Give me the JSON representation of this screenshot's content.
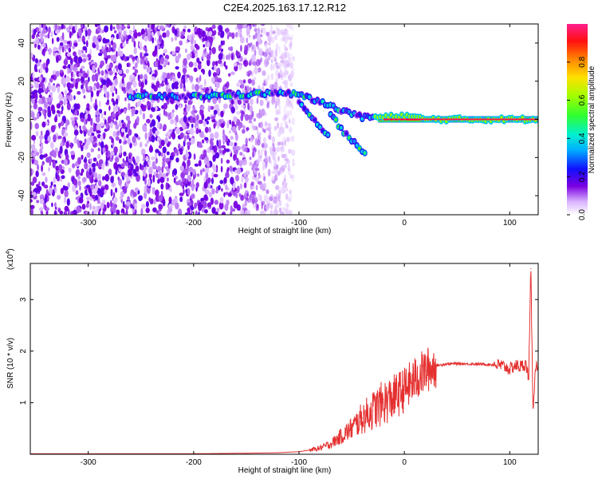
{
  "title": "C2E4.2025.163.17.12.R12",
  "colors": {
    "trace": "#e53030",
    "axis": "#000000"
  },
  "chart_data": [
    {
      "type": "heatmap",
      "xlabel": "Height of straight line (km)",
      "ylabel": "Frequency (Hz)",
      "xlim": [
        -355,
        127
      ],
      "ylim": [
        -50,
        50
      ],
      "xticks": [
        -300,
        -200,
        -100,
        0,
        100
      ],
      "yticks": [
        -40,
        -20,
        0,
        20,
        40
      ],
      "colorbar": {
        "label": "Normalized spectral amplitude",
        "range": [
          0,
          1
        ],
        "ticks": [
          "0.0",
          "0.2",
          "0.4",
          "0.6",
          "0.8"
        ],
        "tick_values": [
          0.0,
          0.2,
          0.4,
          0.6,
          0.8
        ],
        "colormap": "rainbow"
      },
      "ridges": [
        {
          "points": [
            [
              -260,
              12
            ],
            [
              -200,
              12
            ],
            [
              -150,
              13
            ],
            [
              -120,
              14
            ],
            [
              -100,
              13
            ],
            [
              -80,
              9
            ],
            [
              -60,
              5
            ],
            [
              -40,
              1
            ],
            [
              -20,
              1
            ],
            [
              0,
              2
            ],
            [
              20,
              0
            ],
            [
              127,
              0
            ]
          ]
        },
        {
          "points": [
            [
              -100,
              10
            ],
            [
              -90,
              3
            ],
            [
              -80,
              -4
            ],
            [
              -70,
              -10
            ]
          ]
        },
        {
          "points": [
            [
              -70,
              3
            ],
            [
              -60,
              -5
            ],
            [
              -45,
              -14
            ],
            [
              -35,
              -18
            ]
          ]
        }
      ],
      "noise_region_x": [
        -355,
        -125
      ],
      "carrier_band": {
        "x": [
          -25,
          127
        ],
        "y": 0
      }
    },
    {
      "type": "line",
      "xlabel": "Height of straight line (km)",
      "ylabel": "SNR (10 * v/v)",
      "y_multiplier": "(x10",
      "y_multiplier_exp": "4",
      "xlim": [
        -355,
        127
      ],
      "ylim": [
        0,
        3.7
      ],
      "xticks": [
        -300,
        -200,
        -100,
        0,
        100
      ],
      "yticks": [
        1,
        2,
        3
      ],
      "series": [
        {
          "x": [
            -355,
            -300,
            -200,
            -150,
            -120,
            -100,
            -90,
            -80,
            -70,
            -60,
            -50,
            -40,
            -30,
            -20,
            -10,
            0,
            10,
            20,
            30,
            40,
            50,
            60,
            70,
            80,
            90,
            95,
            100,
            105,
            110,
            115,
            118,
            120,
            122,
            125,
            127
          ],
          "y": [
            0.01,
            0.01,
            0.01,
            0.02,
            0.03,
            0.05,
            0.08,
            0.12,
            0.2,
            0.35,
            0.5,
            0.7,
            0.85,
            1.0,
            1.1,
            1.25,
            1.45,
            1.62,
            1.72,
            1.75,
            1.76,
            1.75,
            1.75,
            1.74,
            1.73,
            1.7,
            1.65,
            1.72,
            1.7,
            1.75,
            1.5,
            3.6,
            0.9,
            1.8,
            1.7
          ]
        }
      ]
    }
  ]
}
